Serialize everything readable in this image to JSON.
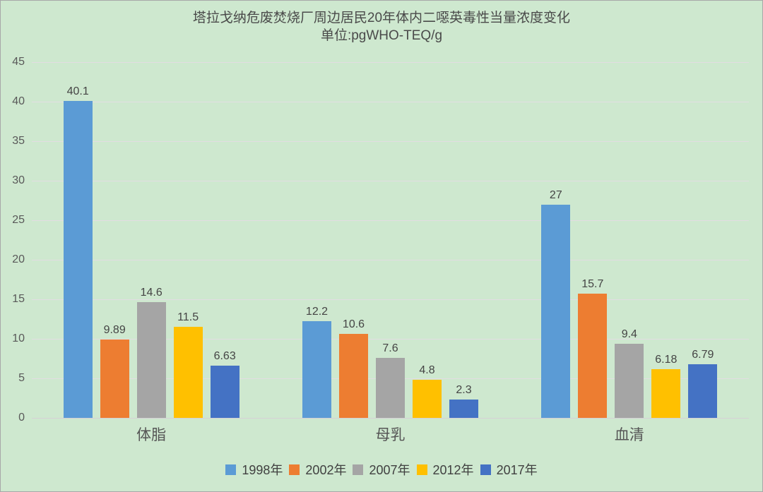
{
  "colors": {
    "background": "#cee8cf",
    "gridline": "#e2dde2",
    "axis_line": "#d6d1d6",
    "border": "#a8a8a8",
    "title_text": "#4a4a4a",
    "tick_text": "#595959",
    "value_label_text": "#444444",
    "category_text": "#555555",
    "legend_text": "#404040"
  },
  "chart_data": {
    "type": "bar",
    "title": "塔拉戈纳危废焚烧厂周边居民20年体内二噁英毒性当量浓度变化",
    "subtitle": "单位:pgWHO-TEQ/g",
    "categories": [
      "体脂",
      "母乳",
      "血清"
    ],
    "series": [
      {
        "name": "1998年",
        "color": "#5B9BD5",
        "values": [
          40.1,
          12.2,
          27
        ]
      },
      {
        "name": "2002年",
        "color": "#ED7D31",
        "values": [
          9.89,
          10.6,
          15.7
        ]
      },
      {
        "name": "2007年",
        "color": "#A5A5A5",
        "values": [
          14.6,
          7.6,
          9.4
        ]
      },
      {
        "name": "2012年",
        "color": "#FFC000",
        "values": [
          11.5,
          4.8,
          6.18
        ]
      },
      {
        "name": "2017年",
        "color": "#4472C4",
        "values": [
          6.63,
          2.3,
          6.79
        ]
      }
    ],
    "data_labels_shown": true,
    "xlabel": "",
    "ylabel": "",
    "ylim": [
      0,
      45
    ],
    "yticks": [
      0,
      5,
      10,
      15,
      20,
      25,
      30,
      35,
      40,
      45
    ],
    "grid": "horizontal",
    "legend_position": "bottom"
  }
}
